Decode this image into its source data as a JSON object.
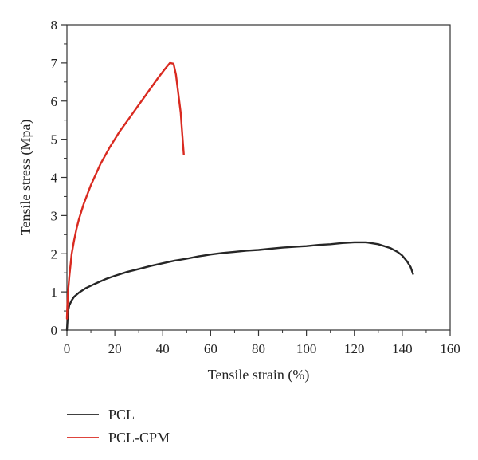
{
  "chart_data": {
    "type": "line",
    "title": "",
    "xlabel": "Tensile strain (%)",
    "ylabel": "Tensile stress (Mpa)",
    "xlim": [
      0,
      160
    ],
    "ylim": [
      0,
      8
    ],
    "xticks": [
      "0",
      "20",
      "40",
      "60",
      "80",
      "100",
      "120",
      "140",
      "160"
    ],
    "yticks": [
      "0",
      "1",
      "2",
      "3",
      "4",
      "5",
      "6",
      "7",
      "8"
    ],
    "grid": false,
    "legend": "bottom-left",
    "series": [
      {
        "name": "PCL",
        "color": "#262626",
        "x": [
          0,
          0.5,
          1,
          2,
          3,
          5,
          8,
          12,
          16,
          20,
          25,
          30,
          35,
          40,
          45,
          50,
          55,
          60,
          65,
          70,
          75,
          80,
          85,
          90,
          95,
          100,
          105,
          110,
          115,
          120,
          125,
          130,
          135,
          138,
          140,
          142,
          143.5,
          144.5
        ],
        "y": [
          0,
          0.5,
          0.65,
          0.78,
          0.87,
          0.98,
          1.1,
          1.22,
          1.33,
          1.42,
          1.52,
          1.6,
          1.68,
          1.75,
          1.82,
          1.87,
          1.93,
          1.98,
          2.02,
          2.05,
          2.08,
          2.1,
          2.13,
          2.16,
          2.18,
          2.2,
          2.23,
          2.25,
          2.28,
          2.3,
          2.3,
          2.25,
          2.15,
          2.05,
          1.95,
          1.8,
          1.65,
          1.47
        ]
      },
      {
        "name": "PCL-CPM",
        "color": "#d92a20",
        "x": [
          0,
          0.3,
          0.6,
          1,
          1.5,
          2,
          3,
          4,
          5,
          7,
          10,
          14,
          18,
          22,
          26,
          30,
          34,
          38,
          41,
          43,
          44.5,
          45.5,
          46.5,
          47.5,
          48.2,
          48.8
        ],
        "y": [
          0.3,
          0.8,
          1.1,
          1.4,
          1.7,
          2.0,
          2.35,
          2.65,
          2.9,
          3.3,
          3.8,
          4.35,
          4.8,
          5.2,
          5.55,
          5.9,
          6.25,
          6.6,
          6.85,
          7.0,
          6.98,
          6.7,
          6.2,
          5.7,
          5.1,
          4.6
        ]
      }
    ]
  }
}
